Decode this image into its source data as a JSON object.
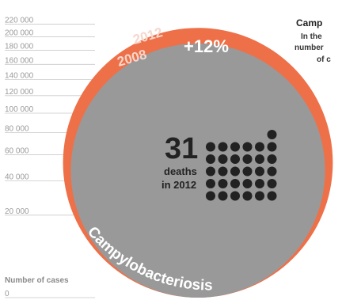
{
  "chart_data": {
    "type": "bubble-comparison",
    "title": "Camp",
    "description_lines": [
      "In the",
      "number",
      "of c"
    ],
    "axis": {
      "title": "Number of cases",
      "ticks": [
        0,
        20000,
        40000,
        60000,
        80000,
        100000,
        120000,
        140000,
        160000,
        180000,
        200000,
        220000
      ],
      "tick_labels": [
        "0",
        "20 000",
        "40 000",
        "60 000",
        "80 000",
        "100 000",
        "120 000",
        "140 000",
        "160 000",
        "180 000",
        "200 000",
        "220 000"
      ],
      "ylim": [
        0,
        220000
      ]
    },
    "series": [
      {
        "name": "2012",
        "value": 214000,
        "color": "#ee7048"
      },
      {
        "name": "2008",
        "value": 190000,
        "color": "#999999"
      }
    ],
    "change_label": "+12%",
    "deaths": {
      "value": 31,
      "count": 31,
      "number_label": "31",
      "line1": "deaths",
      "line2": "in 2012",
      "dot_color": "#222222"
    },
    "disease_label": "Campylobacteriosis"
  }
}
